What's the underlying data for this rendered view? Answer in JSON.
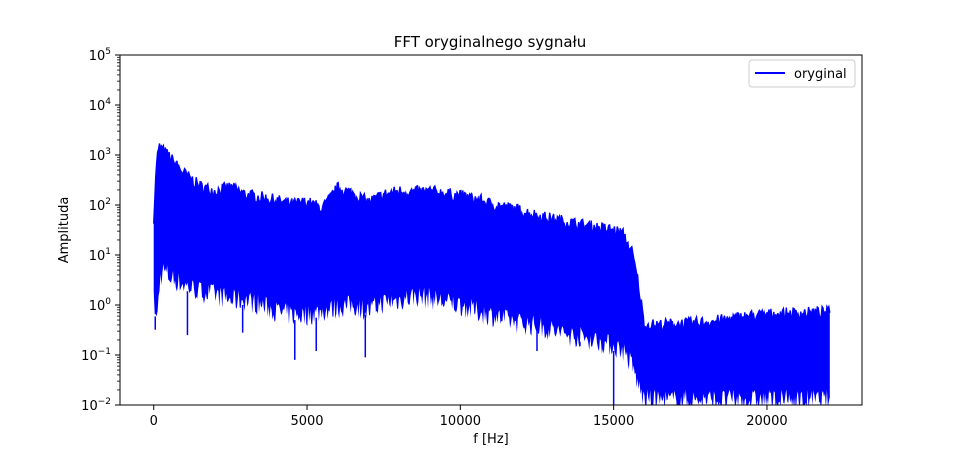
{
  "chart_data": {
    "type": "line",
    "title": "FFT oryginalnego sygnału",
    "xlabel": "f [Hz]",
    "ylabel": "Amplituda",
    "xlim": [
      -1100,
      23100
    ],
    "ylim": [
      0.01,
      100000
    ],
    "yscale": "log",
    "grid": false,
    "legend_position": "top-right",
    "x_ticks": [
      0,
      5000,
      10000,
      15000,
      20000
    ],
    "x_tick_labels": [
      "0",
      "5000",
      "10000",
      "15000",
      "20000"
    ],
    "y_ticks": [
      0.01,
      0.1,
      1,
      10,
      100,
      1000,
      10000,
      100000
    ],
    "y_tick_labels": [
      {
        "base": "10",
        "exp": "−2"
      },
      {
        "base": "10",
        "exp": "−1"
      },
      {
        "base": "10",
        "exp": "0"
      },
      {
        "base": "10",
        "exp": "1"
      },
      {
        "base": "10",
        "exp": "2"
      },
      {
        "base": "10",
        "exp": "3"
      },
      {
        "base": "10",
        "exp": "4"
      },
      {
        "base": "10",
        "exp": "5"
      }
    ],
    "series": [
      {
        "name": "oryginal",
        "color": "#0000ff",
        "upper_envelope": {
          "x": [
            0,
            100,
            200,
            300,
            500,
            700,
            1000,
            1500,
            2000,
            2500,
            3000,
            3500,
            4000,
            4500,
            5000,
            5500,
            6000,
            6500,
            7000,
            7500,
            8000,
            8500,
            9000,
            9500,
            10000,
            10500,
            11000,
            11500,
            12000,
            12500,
            13000,
            13500,
            14000,
            14500,
            15000,
            15300,
            15600,
            15800,
            16000,
            16500,
            17000,
            17500,
            18000,
            18500,
            19000,
            19500,
            20000,
            20500,
            21000,
            21500,
            22050
          ],
          "y": [
            60,
            900,
            1600,
            1300,
            1000,
            700,
            450,
            250,
            200,
            240,
            170,
            150,
            130,
            110,
            120,
            90,
            230,
            180,
            120,
            170,
            200,
            190,
            200,
            180,
            160,
            140,
            110,
            95,
            80,
            65,
            55,
            48,
            42,
            37,
            33,
            28,
            12,
            3,
            0.42,
            0.42,
            0.44,
            0.45,
            0.48,
            0.52,
            0.58,
            0.64,
            0.68,
            0.7,
            0.72,
            0.74,
            0.75
          ]
        },
        "lower_envelope": {
          "x": [
            0,
            100,
            200,
            300,
            500,
            700,
            1000,
            1500,
            2000,
            2500,
            3000,
            3500,
            4000,
            4500,
            5000,
            5500,
            6000,
            6500,
            7000,
            7500,
            8000,
            8500,
            9000,
            9500,
            10000,
            10500,
            11000,
            11500,
            12000,
            12500,
            13000,
            13500,
            14000,
            14500,
            15000,
            15300,
            15600,
            15800,
            16000,
            16500,
            17000,
            17500,
            18000,
            18500,
            19000,
            19500,
            20000,
            20500,
            21000,
            21500,
            22050
          ],
          "y": [
            1.0,
            0.35,
            2.5,
            4,
            3,
            2.5,
            2,
            1.5,
            1.3,
            1.0,
            1.0,
            0.8,
            0.6,
            0.5,
            0.5,
            0.6,
            0.7,
            0.8,
            0.6,
            0.9,
            1.0,
            1.2,
            1.1,
            0.9,
            0.8,
            0.6,
            0.5,
            0.4,
            0.35,
            0.3,
            0.25,
            0.2,
            0.18,
            0.15,
            0.12,
            0.1,
            0.05,
            0.02,
            0.01,
            0.01,
            0.01,
            0.01,
            0.01,
            0.01,
            0.01,
            0.01,
            0.01,
            0.01,
            0.01,
            0.01,
            0.01
          ]
        },
        "dips": [
          {
            "x": 50,
            "y": 0.32
          },
          {
            "x": 1100,
            "y": 0.25
          },
          {
            "x": 2900,
            "y": 0.28
          },
          {
            "x": 4600,
            "y": 0.08
          },
          {
            "x": 5300,
            "y": 0.12
          },
          {
            "x": 6900,
            "y": 0.09
          },
          {
            "x": 12500,
            "y": 0.12
          },
          {
            "x": 13900,
            "y": 0.15
          },
          {
            "x": 15000,
            "y": 0.01
          }
        ]
      }
    ]
  }
}
